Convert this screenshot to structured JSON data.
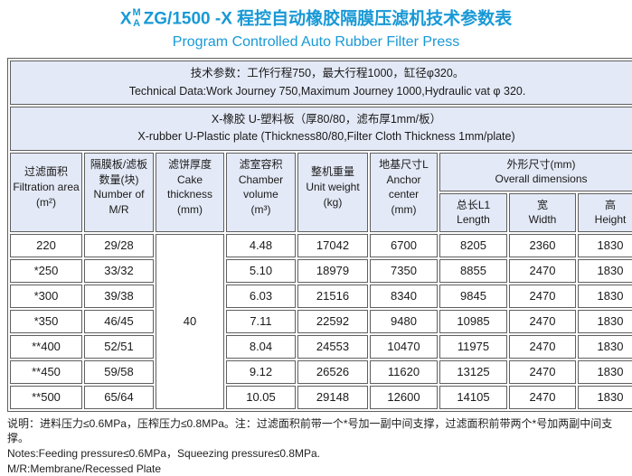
{
  "colors": {
    "accent_blue": "#1899d6",
    "header_bg": "#e3e9f6",
    "border_gray": "#5f5f5f"
  },
  "title": {
    "prefix": "X",
    "stack_top": "M",
    "stack_bottom": "A",
    "main": "ZG/1500 -X 程控自动橡胶隔膜压滤机技术参数表",
    "subtitle": "Program Controlled Auto Rubber Filter Press"
  },
  "tech_data_box": {
    "line_zh": "技术参数：工作行程750，最大行程1000，缸径φ320。",
    "line_en": "Technical Data:Work Journey 750,Maximum Journey 1000,Hydraulic vat φ 320."
  },
  "plate_box": {
    "line_zh": "X-橡胶 U-塑料板（厚80/80，滤布厚1mm/板）",
    "line_en": "X-rubber  U-Plastic plate (Thickness80/80,Filter Cloth Thickness 1mm/plate)"
  },
  "table": {
    "headers": {
      "filtration_area": [
        "过滤面积",
        "Filtration area",
        "(m²)"
      ],
      "number_mr": [
        "隔膜板/滤板",
        "数量(块)",
        "Number of",
        "M/R"
      ],
      "cake_thickness": [
        "滤饼厚度",
        "Cake",
        "thickness",
        "(mm)"
      ],
      "chamber_volume": [
        "滤室容积",
        "Chamber",
        "volume",
        "(m³)"
      ],
      "unit_weight": [
        "整机重量",
        "Unit weight",
        "(kg)"
      ],
      "anchor_center": [
        "地基尺寸L",
        "Anchor",
        "center",
        "(mm)"
      ],
      "overall_dimensions": [
        "外形尺寸(mm)",
        "Overall  dimensions"
      ],
      "length": [
        "总长L1",
        "Length"
      ],
      "width": [
        "宽",
        "Width"
      ],
      "height": [
        "高",
        "Height"
      ]
    },
    "cake_thickness_value": "40",
    "rows": [
      {
        "filtration_area": "220",
        "number_mr": "29/28",
        "chamber_volume": "4.48",
        "unit_weight": "17042",
        "anchor_center": "6700",
        "length": "8205",
        "width": "2360",
        "height": "1830"
      },
      {
        "filtration_area": "*250",
        "number_mr": "33/32",
        "chamber_volume": "5.10",
        "unit_weight": "18979",
        "anchor_center": "7350",
        "length": "8855",
        "width": "2470",
        "height": "1830"
      },
      {
        "filtration_area": "*300",
        "number_mr": "39/38",
        "chamber_volume": "6.03",
        "unit_weight": "21516",
        "anchor_center": "8340",
        "length": "9845",
        "width": "2470",
        "height": "1830"
      },
      {
        "filtration_area": "*350",
        "number_mr": "46/45",
        "chamber_volume": "7.11",
        "unit_weight": "22592",
        "anchor_center": "9480",
        "length": "10985",
        "width": "2470",
        "height": "1830"
      },
      {
        "filtration_area": "**400",
        "number_mr": "52/51",
        "chamber_volume": "8.04",
        "unit_weight": "24553",
        "anchor_center": "10470",
        "length": "11975",
        "width": "2470",
        "height": "1830"
      },
      {
        "filtration_area": "**450",
        "number_mr": "59/58",
        "chamber_volume": "9.12",
        "unit_weight": "26526",
        "anchor_center": "11620",
        "length": "13125",
        "width": "2470",
        "height": "1830"
      },
      {
        "filtration_area": "**500",
        "number_mr": "65/64",
        "chamber_volume": "10.05",
        "unit_weight": "29148",
        "anchor_center": "12600",
        "length": "14105",
        "width": "2470",
        "height": "1830"
      }
    ]
  },
  "notes": {
    "line1": "说明：进料压力≤0.6MPa，压榨压力≤0.8MPa。注：过滤面积前带一个*号加一副中间支撑，过滤面积前带两个*号加两副中间支撑。",
    "line2": "Notes:Feeding pressure≤0.6MPa，Squeezing pressure≤0.8MPa.",
    "line3": "M/R:Membrane/Recessed Plate"
  }
}
